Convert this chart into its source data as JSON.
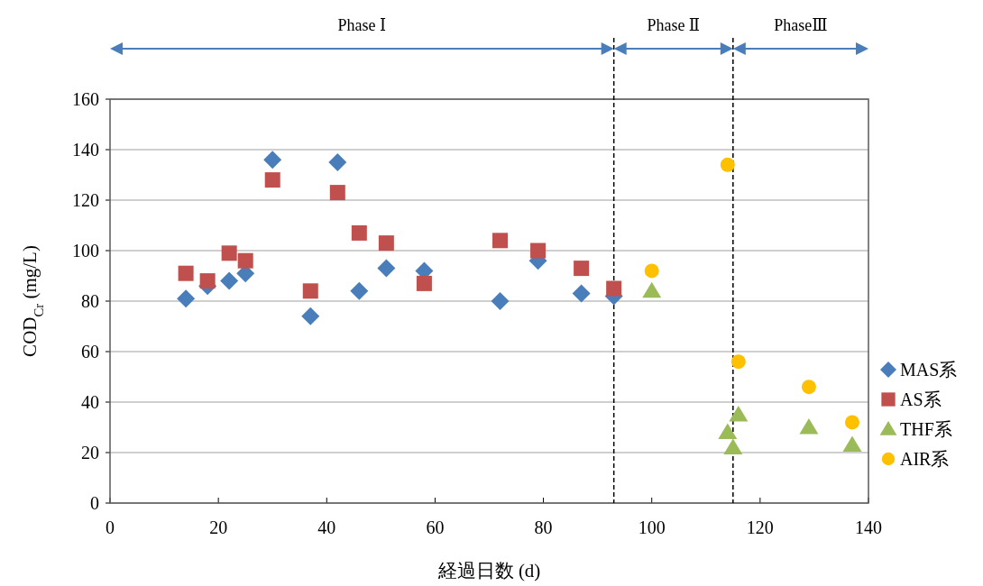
{
  "chart_data": {
    "type": "scatter",
    "xlabel": "経過日数 (d)",
    "ylabel": "COD$_{Cr}$ (mg/L)",
    "xlim": [
      0,
      140
    ],
    "xticks": [
      0,
      20,
      40,
      60,
      80,
      100,
      120,
      140
    ],
    "ylim": [
      0,
      160
    ],
    "yticks": [
      0,
      20,
      40,
      60,
      80,
      100,
      120,
      140,
      160
    ],
    "grid": "y",
    "legend": "right",
    "series": [
      {
        "name": "MAS系",
        "color": "#4a7ebb",
        "marker": "diamond",
        "x": [
          14,
          18,
          22,
          25,
          30,
          37,
          42,
          46,
          51,
          58,
          72,
          79,
          87,
          93
        ],
        "values": [
          81,
          86,
          88,
          91,
          136,
          74,
          135,
          84,
          93,
          92,
          80,
          96,
          83,
          82
        ]
      },
      {
        "name": "AS系",
        "color": "#c0504d",
        "marker": "square",
        "x": [
          14,
          18,
          22,
          25,
          30,
          37,
          42,
          46,
          51,
          58,
          72,
          79,
          87,
          93
        ],
        "values": [
          91,
          88,
          99,
          96,
          128,
          84,
          123,
          107,
          103,
          87,
          104,
          100,
          93,
          85
        ]
      },
      {
        "name": "THF系",
        "color": "#9bbb59",
        "marker": "triangle",
        "x": [
          100,
          114,
          115,
          116,
          129,
          137
        ],
        "values": [
          84,
          28,
          22,
          35,
          30,
          23
        ]
      },
      {
        "name": "AIR系",
        "color": "#ffc000",
        "marker": "circle",
        "x": [
          100,
          114,
          116,
          129,
          137
        ],
        "values": [
          92,
          134,
          56,
          46,
          32
        ]
      }
    ],
    "ref_lines": [
      {
        "axis": "x",
        "value": 93,
        "color": "#000000",
        "line_style": "dashed"
      },
      {
        "axis": "x",
        "value": 115,
        "color": "#000000",
        "line_style": "dashed"
      }
    ],
    "annotations": [
      "Phase Ⅰ",
      "Phase Ⅱ",
      "PhaseⅢ"
    ]
  }
}
